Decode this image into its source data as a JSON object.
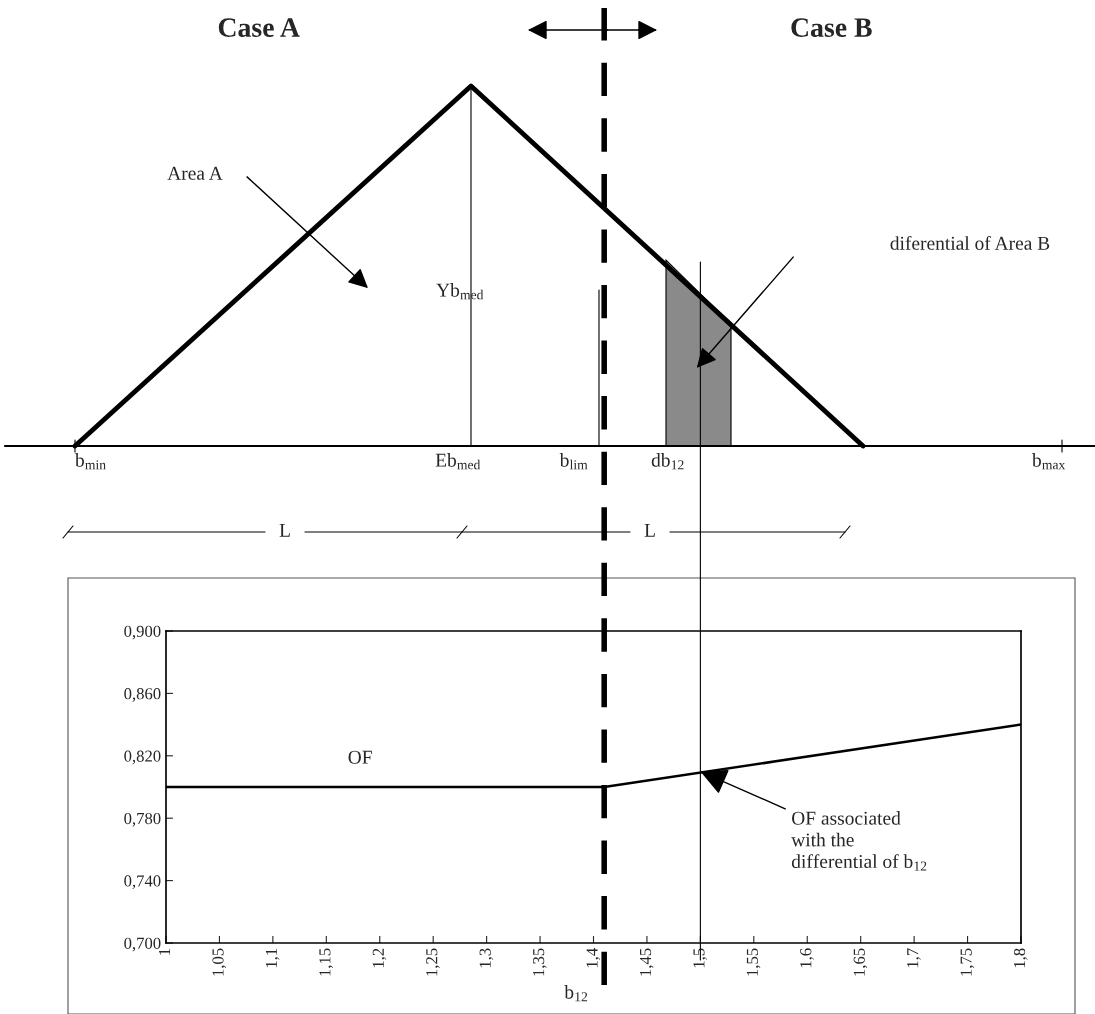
{
  "chart_data": [
    {
      "type": "other",
      "annotations": [
        "Case A",
        "Case B",
        "Area A",
        "Yb$_{med}$",
        "diferential of Area B",
        "b$_{min}$",
        "Eb$_{med}$",
        "b$_{lim}$",
        "db$_{12}$",
        "b$_{max}$",
        "L",
        "L"
      ]
    },
    {
      "type": "line",
      "x": [
        1,
        1.41,
        1.8
      ],
      "series": [
        {
          "name": "OF",
          "color": "#000000",
          "values": [
            0.8,
            0.8,
            0.84
          ]
        }
      ],
      "xlim": [
        1,
        1.8
      ],
      "xticks": [
        1,
        {
          "value": 1.05,
          "label": "1,05"
        },
        {
          "value": 1.1,
          "label": "1,1"
        },
        {
          "value": 1.15,
          "label": "1,15"
        },
        {
          "value": 1.2,
          "label": "1,2"
        },
        {
          "value": 1.25,
          "label": "1,25"
        },
        {
          "value": 1.3,
          "label": "1,3"
        },
        {
          "value": 1.35,
          "label": "1,35"
        },
        {
          "value": 1.4,
          "label": "1,4"
        },
        {
          "value": 1.45,
          "label": "1,45"
        },
        {
          "value": 1.5,
          "label": "1,5"
        },
        {
          "value": 1.55,
          "label": "1,55"
        },
        {
          "value": 1.6,
          "label": "1,6"
        },
        {
          "value": 1.65,
          "label": "1,65"
        },
        {
          "value": 1.7,
          "label": "1,7"
        },
        {
          "value": 1.75,
          "label": "1,75"
        },
        {
          "value": 1.8,
          "label": "1,8"
        }
      ],
      "ylim": [
        0.7,
        0.9
      ],
      "yticks": [
        {
          "value": 0.7,
          "label": "0,700"
        },
        {
          "value": 0.74,
          "label": "0,740"
        },
        {
          "value": 0.78,
          "label": "0,780"
        },
        {
          "value": 0.82,
          "label": "0,820"
        },
        {
          "value": 0.86,
          "label": "0,860"
        },
        {
          "value": 0.9,
          "label": "0,900"
        }
      ],
      "xlabel": "b$_{12}$",
      "annotations": [
        {
          "text": "OF associated\nwith the\ndifferential of b$_{12}$",
          "x": 1.5,
          "y": 0.81
        }
      ],
      "ref_lines": [
        {
          "axis": "x",
          "value": 1.41,
          "line_style": "dashed"
        },
        {
          "axis": "x",
          "value": 1.5,
          "line_style": "solid"
        }
      ],
      "grid": false,
      "legend": false,
      "marker": "none",
      "line_style": "solid"
    }
  ]
}
